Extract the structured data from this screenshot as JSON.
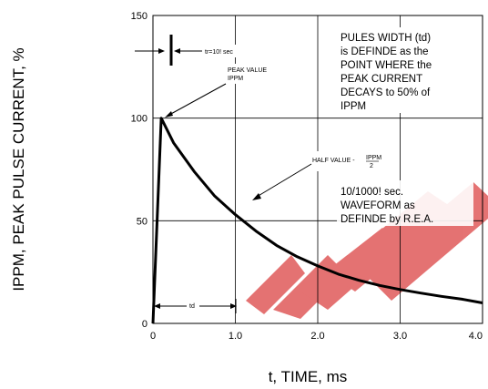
{
  "chart_data": {
    "type": "line",
    "title": "",
    "xlabel": "t, TIME, ms",
    "ylabel": "IPPM, PEAK PULSE CURRENT, %",
    "xlim": [
      0,
      4.0
    ],
    "ylim": [
      0,
      150
    ],
    "x_ticks": [
      "0",
      "1.0",
      "2.0",
      "3.0",
      "4.0"
    ],
    "y_ticks": [
      "0",
      "50",
      "100",
      "150"
    ],
    "grid": true,
    "series": [
      {
        "x": [
          0,
          0.1,
          0.25,
          0.5,
          0.75,
          1.0,
          1.25,
          1.5,
          1.75,
          2.0,
          2.25,
          2.5,
          2.75,
          3.0,
          3.25,
          3.5,
          3.75,
          4.0
        ],
        "values": [
          0,
          100,
          88,
          74,
          62,
          53,
          45,
          38,
          32.5,
          28,
          24,
          21,
          18.5,
          16.5,
          14.8,
          13.2,
          11.8,
          10
        ]
      }
    ],
    "annotations": {
      "rise_time_label": "tr=10! sec",
      "peak_value_label": "PEAK VALUE",
      "peak_value_sub": "IPPM",
      "pulse_width_note": [
        "PULES WIDTH (td)",
        "is DEFINDE as the",
        "POINT WHERE the",
        "PEAK CURRENT",
        "DECAYS to 50% of",
        "IPPM"
      ],
      "half_value_label": "HALF VALUE - ",
      "half_value_num": "IPPM",
      "half_value_den": "2",
      "waveform_note": [
        "10/1000! sec.",
        "WAVEFORM as",
        "DEFINDE by R.E.A."
      ],
      "td_label": "td"
    }
  }
}
